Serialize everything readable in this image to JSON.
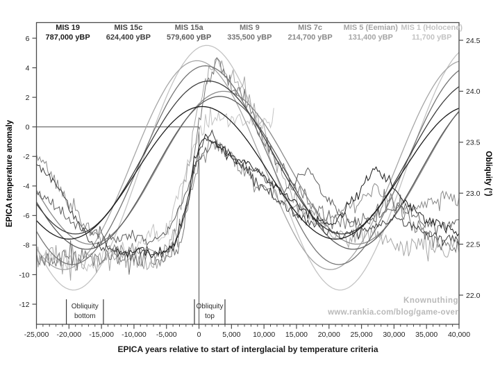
{
  "chart_data": {
    "type": "line",
    "title": "",
    "xlabel": "EPICA years relative to start of interglacial by temperature criteria",
    "ylabel_left": "EPICA temperature anomaly",
    "ylabel_right": "Obliquity (°)",
    "x_range": [
      -25000,
      40000
    ],
    "x_ticks": [
      -25000,
      -20000,
      -15000,
      -10000,
      -5000,
      0,
      5000,
      10000,
      15000,
      20000,
      25000,
      30000,
      35000,
      40000
    ],
    "x_tick_labels": [
      "-25,000",
      "-20,000",
      "-15,000",
      "-10,000",
      "-5,000",
      "0",
      "5,000",
      "10,000",
      "15,000",
      "20,000",
      "25,000",
      "30,000",
      "35,000",
      "40,000"
    ],
    "x_minor_step": 1000,
    "y_left_ticks": [
      6,
      4,
      2,
      0,
      -2,
      -4,
      -6,
      -8,
      -10,
      -12
    ],
    "y_left_tick_labels": [
      "6",
      "4",
      "2",
      "0",
      "-2",
      "-4",
      "-6",
      "-8",
      "-10",
      "-12"
    ],
    "y_left_range": [
      -12,
      6
    ],
    "y_right_ticks": [
      24.5,
      24.0,
      23.5,
      23.0,
      22.5,
      22.0
    ],
    "y_right_tick_labels": [
      "24.5",
      "24.0",
      "23.5",
      "23.0",
      "22.5",
      "22.0"
    ],
    "y_right_range": [
      22.0,
      24.5
    ],
    "grid": false,
    "legend_position": "top",
    "reference_lines": {
      "h_line": {
        "temp": 0,
        "x_from": -25000,
        "x_to": 0
      },
      "v_line": {
        "x": 0,
        "temp_from": 0,
        "temp_to": -13.4
      }
    },
    "series": [
      {
        "id": "mis19",
        "label": "MIS 19",
        "years_bp": "787,000 yBP",
        "color": "#1c1c1c",
        "obliquity": {
          "min": 22.55,
          "max": 23.85,
          "peak_x": 500,
          "period": 41000
        },
        "temperature": {
          "noise": 0.25,
          "points": [
            [
              -13000,
              -8.2
            ],
            [
              -11000,
              -8.6
            ],
            [
              -9000,
              -8.3
            ],
            [
              -7000,
              -8.8
            ],
            [
              -5000,
              -8.4
            ],
            [
              -3500,
              -7.8
            ],
            [
              -2000,
              -5.5
            ],
            [
              -1000,
              -3.0
            ],
            [
              0,
              -1.2
            ],
            [
              1000,
              -0.6
            ],
            [
              2500,
              -1.0
            ],
            [
              4000,
              -1.6
            ],
            [
              6000,
              -2.2
            ],
            [
              8000,
              -2.6
            ],
            [
              10000,
              -3.4
            ],
            [
              12000,
              -4.2
            ],
            [
              15000,
              -5.2
            ],
            [
              18000,
              -6.2
            ],
            [
              21000,
              -6.6
            ],
            [
              24000,
              -4.8
            ],
            [
              27000,
              -2.8
            ],
            [
              29000,
              -3.6
            ],
            [
              32000,
              -5.2
            ],
            [
              35000,
              -6.2
            ],
            [
              38000,
              -6.8
            ],
            [
              40000,
              -7.2
            ]
          ]
        }
      },
      {
        "id": "mis15c",
        "label": "MIS 15c",
        "years_bp": "624,400 yBP",
        "color": "#3d3d3d",
        "obliquity": {
          "min": 22.6,
          "max": 24.1,
          "peak_x": 1500,
          "period": 41000
        },
        "temperature": {
          "noise": 0.25,
          "points": [
            [
              -25000,
              -2.6
            ],
            [
              -23000,
              -3.4
            ],
            [
              -21000,
              -4.6
            ],
            [
              -19000,
              -6.2
            ],
            [
              -17000,
              -7.6
            ],
            [
              -15000,
              -8.2
            ],
            [
              -12000,
              -8.6
            ],
            [
              -9000,
              -8.4
            ],
            [
              -6000,
              -8.7
            ],
            [
              -4000,
              -8.2
            ],
            [
              -2500,
              -6.5
            ],
            [
              -1000,
              -3.5
            ],
            [
              0,
              -1.5
            ],
            [
              1500,
              -0.6
            ],
            [
              3000,
              -1.2
            ],
            [
              5000,
              -2.0
            ],
            [
              7000,
              -2.8
            ],
            [
              9000,
              -3.8
            ],
            [
              12000,
              -5.0
            ],
            [
              15000,
              -6.0
            ],
            [
              18000,
              -6.8
            ],
            [
              22000,
              -7.4
            ],
            [
              26000,
              -7.0
            ],
            [
              30000,
              -6.2
            ],
            [
              33000,
              -6.8
            ],
            [
              36000,
              -7.4
            ],
            [
              40000,
              -7.6
            ]
          ]
        }
      },
      {
        "id": "mis15a",
        "label": "MIS 15a",
        "years_bp": "579,600 yBP",
        "color": "#5c5c5c",
        "obliquity": {
          "min": 22.45,
          "max": 23.95,
          "peak_x": 3200,
          "period": 41000
        },
        "temperature": {
          "noise": 0.3,
          "points": [
            [
              -25000,
              -4.4
            ],
            [
              -22000,
              -5.4
            ],
            [
              -19000,
              -6.6
            ],
            [
              -16000,
              -7.2
            ],
            [
              -13000,
              -7.6
            ],
            [
              -10000,
              -7.2
            ],
            [
              -8000,
              -7.8
            ],
            [
              -6000,
              -7.4
            ],
            [
              -4000,
              -6.6
            ],
            [
              -2000,
              -4.4
            ],
            [
              -500,
              -2.6
            ],
            [
              1000,
              -1.6
            ],
            [
              2500,
              -1.0
            ],
            [
              4500,
              -1.8
            ],
            [
              6500,
              -2.4
            ],
            [
              9000,
              -3.0
            ],
            [
              11000,
              -3.8
            ],
            [
              13000,
              -4.6
            ],
            [
              15000,
              -3.6
            ],
            [
              17000,
              -2.9
            ],
            [
              19000,
              -4.4
            ],
            [
              22000,
              -6.0
            ],
            [
              25000,
              -6.6
            ],
            [
              28000,
              -6.0
            ],
            [
              31000,
              -5.2
            ],
            [
              34000,
              -6.2
            ],
            [
              37000,
              -6.8
            ],
            [
              40000,
              -6.4
            ]
          ]
        }
      },
      {
        "id": "mis9",
        "label": "MIS 9",
        "years_bp": "335,500 yBP",
        "color": "#757575",
        "obliquity": {
          "min": 22.3,
          "max": 24.25,
          "peak_x": 1000,
          "period": 41000
        },
        "temperature": {
          "noise": 0.55,
          "points": [
            [
              -25000,
              -8.8
            ],
            [
              -22000,
              -9.0
            ],
            [
              -19000,
              -8.6
            ],
            [
              -16000,
              -9.1
            ],
            [
              -13000,
              -8.7
            ],
            [
              -10000,
              -9.0
            ],
            [
              -7000,
              -8.8
            ],
            [
              -5000,
              -9.2
            ],
            [
              -3000,
              -8.0
            ],
            [
              -1500,
              -4.5
            ],
            [
              0,
              0.5
            ],
            [
              1500,
              3.2
            ],
            [
              2800,
              4.3
            ],
            [
              4000,
              3.6
            ],
            [
              5500,
              2.6
            ],
            [
              7000,
              1.6
            ],
            [
              8500,
              0.4
            ],
            [
              10000,
              -0.8
            ],
            [
              12000,
              -2.2
            ],
            [
              14000,
              -3.6
            ],
            [
              16000,
              -4.6
            ],
            [
              18000,
              -5.4
            ],
            [
              20000,
              -6.0
            ],
            [
              23000,
              -6.6
            ],
            [
              26000,
              -6.2
            ],
            [
              29000,
              -5.0
            ],
            [
              31000,
              -5.8
            ],
            [
              34000,
              -7.0
            ],
            [
              37000,
              -7.8
            ],
            [
              40000,
              -8.2
            ]
          ]
        }
      },
      {
        "id": "mis7c",
        "label": "MIS 7c",
        "years_bp": "214,700 yBP",
        "color": "#8a8a8a",
        "obliquity": {
          "min": 22.5,
          "max": 24.0,
          "peak_x": 3800,
          "period": 41000
        },
        "temperature": {
          "noise": 0.4,
          "points": [
            [
              -25000,
              -1.8
            ],
            [
              -23500,
              -2.6
            ],
            [
              -22000,
              -3.8
            ],
            [
              -20000,
              -5.2
            ],
            [
              -18000,
              -6.4
            ],
            [
              -16000,
              -7.4
            ],
            [
              -14000,
              -8.0
            ],
            [
              -11000,
              -8.4
            ],
            [
              -8000,
              -8.2
            ],
            [
              -6000,
              -8.6
            ],
            [
              -4000,
              -8.0
            ],
            [
              -2500,
              -6.6
            ],
            [
              -1000,
              -4.0
            ],
            [
              500,
              -1.8
            ],
            [
              2000,
              -1.0
            ],
            [
              3500,
              -1.5
            ],
            [
              5000,
              -2.2
            ],
            [
              7000,
              -3.0
            ],
            [
              9000,
              -3.8
            ],
            [
              11000,
              -4.4
            ],
            [
              13000,
              -5.0
            ],
            [
              16000,
              -5.6
            ],
            [
              19000,
              -6.2
            ],
            [
              22000,
              -5.6
            ],
            [
              25000,
              -4.8
            ],
            [
              27000,
              -4.2
            ],
            [
              29000,
              -4.9
            ],
            [
              32000,
              -5.8
            ],
            [
              35000,
              -5.2
            ],
            [
              38000,
              -4.6
            ],
            [
              40000,
              -5.0
            ]
          ]
        }
      },
      {
        "id": "mis5",
        "label": "MIS 5 (Eemian)",
        "years_bp": "131,400 yBP",
        "color": "#a6a6a6",
        "obliquity": {
          "min": 22.25,
          "max": 24.3,
          "peak_x": -300,
          "period": 41000
        },
        "temperature": {
          "noise": 0.6,
          "points": [
            [
              -25000,
              -9.0
            ],
            [
              -22000,
              -8.6
            ],
            [
              -19000,
              -9.2
            ],
            [
              -16000,
              -8.8
            ],
            [
              -13000,
              -9.3
            ],
            [
              -10000,
              -9.0
            ],
            [
              -8000,
              -9.4
            ],
            [
              -6000,
              -9.0
            ],
            [
              -4500,
              -8.2
            ],
            [
              -3000,
              -5.8
            ],
            [
              -1500,
              -2.2
            ],
            [
              0,
              1.6
            ],
            [
              1200,
              3.4
            ],
            [
              2500,
              4.6
            ],
            [
              3800,
              4.0
            ],
            [
              5000,
              3.4
            ],
            [
              6500,
              2.8
            ],
            [
              8000,
              1.6
            ],
            [
              9500,
              0.2
            ],
            [
              11000,
              -1.6
            ],
            [
              13000,
              -3.6
            ],
            [
              15000,
              -5.2
            ],
            [
              17000,
              -6.2
            ],
            [
              20000,
              -7.0
            ],
            [
              23000,
              -7.6
            ],
            [
              26000,
              -7.2
            ],
            [
              29000,
              -7.9
            ],
            [
              32000,
              -8.3
            ],
            [
              35000,
              -7.8
            ],
            [
              38000,
              -8.4
            ],
            [
              40000,
              -8.1
            ]
          ]
        }
      },
      {
        "id": "mis1",
        "label": "MIS 1 (Holocene)",
        "years_bp": "11,700 yBP",
        "color": "#c3c3c3",
        "obliquity": {
          "min": 22.05,
          "max": 24.45,
          "peak_x": 1200,
          "period": 41000
        },
        "temperature": {
          "noise": 0.45,
          "points": [
            [
              -25000,
              -8.4
            ],
            [
              -23000,
              -8.9
            ],
            [
              -21000,
              -9.4
            ],
            [
              -19000,
              -9.0
            ],
            [
              -17000,
              -9.5
            ],
            [
              -15000,
              -8.9
            ],
            [
              -13000,
              -8.4
            ],
            [
              -11000,
              -8.8
            ],
            [
              -9000,
              -8.0
            ],
            [
              -7000,
              -7.0
            ],
            [
              -5500,
              -7.6
            ],
            [
              -4000,
              -5.6
            ],
            [
              -2500,
              -3.6
            ],
            [
              -1000,
              -1.6
            ],
            [
              0,
              -0.4
            ],
            [
              1500,
              0.4
            ],
            [
              3000,
              0.7
            ],
            [
              5000,
              0.3
            ],
            [
              7000,
              0.5
            ],
            [
              9000,
              0.2
            ],
            [
              11700,
              0.4
            ]
          ]
        }
      }
    ],
    "annotations": [
      {
        "id": "obliquity-bottom",
        "lines": [
          "Obliquity",
          "bottom"
        ],
        "x1": -20400,
        "x2": -14700,
        "label_x": -17550
      },
      {
        "id": "obliquity-top",
        "lines": [
          "Obliquity",
          "top"
        ],
        "x1": -700,
        "x2": 4000,
        "label_x": 1650
      }
    ]
  },
  "watermark": {
    "line1": "Knownuthing",
    "line2": "www.rankia.com/blog/game-over"
  }
}
